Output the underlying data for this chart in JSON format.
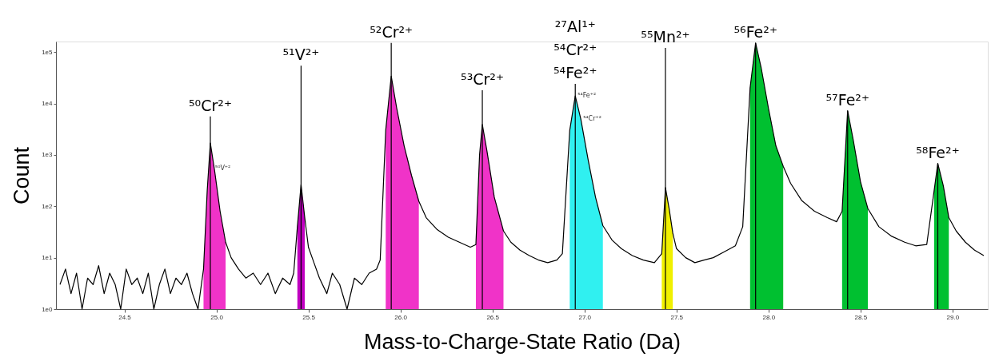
{
  "chart_data": {
    "type": "line",
    "xlabel": "Mass-to-Charge-State Ratio (Da)",
    "ylabel": "Count",
    "log": true,
    "grid": false,
    "marker": "none",
    "line_style": "solid",
    "xlim": [
      24.15,
      29.17
    ],
    "ylim": [
      1,
      160000
    ],
    "xticks": [
      24.5,
      {
        "value": 25,
        "label": "25.0"
      },
      25.5,
      {
        "value": 26,
        "label": "26.0"
      },
      26.5,
      {
        "value": 27,
        "label": "27.0"
      },
      27.5,
      {
        "value": 28,
        "label": "28.0"
      },
      28.5,
      {
        "value": 29,
        "label": "29.0"
      }
    ],
    "yticks": [
      {
        "value": 1,
        "label": "1e0"
      },
      {
        "value": 10,
        "label": "1e1"
      },
      {
        "value": 100,
        "label": "1e2"
      },
      {
        "value": 1000,
        "label": "1e3"
      },
      {
        "value": 10000,
        "label": "1e4"
      },
      {
        "value": 100000,
        "label": "1e5"
      }
    ],
    "series": [
      {
        "type": "area",
        "color": "#f033c8",
        "x": [
          24.93,
          24.95,
          24.967,
          24.99,
          25.02,
          25.05
        ],
        "values": [
          6,
          200,
          1700,
          500,
          80,
          20
        ]
      },
      {
        "type": "area",
        "color": "#c000c0",
        "x": [
          25.44,
          25.46,
          25.48
        ],
        "values": [
          40,
          265,
          60
        ]
      },
      {
        "type": "area",
        "color": "#f033c8",
        "x": [
          25.92,
          25.95,
          25.98,
          26.02,
          26.06,
          26.1
        ],
        "values": [
          3000,
          34000,
          8000,
          1500,
          400,
          125
        ]
      },
      {
        "type": "area",
        "color": "#f033c8",
        "x": [
          26.41,
          26.43,
          26.445,
          26.47,
          26.51,
          26.56
        ],
        "values": [
          18,
          1000,
          3900,
          1200,
          150,
          33
        ]
      },
      {
        "type": "area",
        "color": "#30f0f0",
        "x": [
          26.92,
          26.95,
          26.98,
          27.02,
          27.06,
          27.1
        ],
        "values": [
          3000,
          14000,
          5000,
          800,
          150,
          42
        ]
      },
      {
        "type": "area",
        "color": "#f0f000",
        "x": [
          27.42,
          27.44,
          27.46,
          27.48
        ],
        "values": [
          12,
          230,
          90,
          30
        ]
      },
      {
        "type": "area",
        "color": "#00c030",
        "x": [
          27.9,
          27.93,
          27.96,
          28.0,
          28.04,
          28.08
        ],
        "values": [
          20000,
          150000,
          50000,
          8000,
          1500,
          600
        ]
      },
      {
        "type": "area",
        "color": "#00c030",
        "x": [
          28.4,
          28.43,
          28.46,
          28.5,
          28.54
        ],
        "values": [
          80,
          7200,
          2000,
          300,
          90
        ]
      },
      {
        "type": "area",
        "color": "#00c030",
        "x": [
          28.9,
          28.92,
          28.95,
          28.98
        ],
        "values": [
          200,
          680,
          250,
          60
        ]
      },
      {
        "type": "bar",
        "color": "#000000",
        "x": [
          24.967,
          25.46,
          25.95,
          26.445,
          26.95,
          27.44,
          27.93,
          28.43,
          28.92
        ],
        "values": [
          5600,
          54000,
          150000,
          18000,
          24000,
          120000,
          150000,
          7200,
          680
        ],
        "value_labels": [
          "⁵⁰Cr²⁺",
          "⁵¹V²⁺",
          "⁵²Cr²⁺",
          "⁵³Cr²⁺",
          "²⁷Al¹⁺\n⁵⁴Cr²⁺\n⁵⁴Fe²⁺",
          "⁵⁵Mn²⁺",
          "⁵⁶Fe²⁺",
          "⁵⁷Fe²⁺",
          "⁵⁸Fe²⁺"
        ]
      },
      {
        "color": "#000000",
        "x": [
          24.15,
          24.18,
          24.21,
          24.24,
          24.27,
          24.3,
          24.33,
          24.36,
          24.39,
          24.42,
          24.45,
          24.48,
          24.51,
          24.54,
          24.57,
          24.6,
          24.63,
          24.66,
          24.69,
          24.72,
          24.75,
          24.78,
          24.81,
          24.84,
          24.87,
          24.9,
          24.93,
          24.95,
          24.967,
          24.99,
          25.02,
          25.05,
          25.08,
          25.12,
          25.16,
          25.2,
          25.24,
          25.28,
          25.32,
          25.36,
          25.4,
          25.42,
          25.44,
          25.46,
          25.48,
          25.5,
          25.53,
          25.56,
          25.6,
          25.63,
          25.67,
          25.71,
          25.75,
          25.79,
          25.83,
          25.87,
          25.89,
          25.92,
          25.95,
          25.98,
          26.02,
          26.06,
          26.1,
          26.14,
          26.2,
          26.26,
          26.32,
          26.38,
          26.41,
          26.43,
          26.445,
          26.47,
          26.51,
          26.56,
          26.6,
          26.65,
          26.7,
          26.75,
          26.8,
          26.85,
          26.88,
          26.92,
          26.95,
          26.98,
          27.02,
          27.06,
          27.1,
          27.15,
          27.2,
          27.26,
          27.32,
          27.38,
          27.42,
          27.44,
          27.46,
          27.48,
          27.5,
          27.55,
          27.6,
          27.65,
          27.7,
          27.76,
          27.82,
          27.86,
          27.9,
          27.93,
          27.96,
          28.0,
          28.04,
          28.08,
          28.12,
          28.18,
          28.25,
          28.32,
          28.37,
          28.4,
          28.43,
          28.46,
          28.5,
          28.54,
          28.6,
          28.67,
          28.74,
          28.8,
          28.86,
          28.9,
          28.92,
          28.95,
          28.98,
          29.02,
          29.07,
          29.12,
          29.17
        ],
        "values": [
          3,
          6,
          2,
          5,
          1,
          4,
          3,
          7,
          2,
          5,
          3,
          1,
          6,
          3,
          4,
          2,
          5,
          1,
          3,
          6,
          2,
          4,
          3,
          5,
          2,
          1,
          6,
          200,
          1700,
          500,
          80,
          20,
          10,
          6,
          4,
          5,
          3,
          5,
          2,
          4,
          3,
          5,
          40,
          265,
          60,
          16,
          8,
          4,
          2,
          5,
          3,
          1,
          4,
          3,
          5,
          6,
          9,
          3000,
          34000,
          8000,
          1500,
          400,
          125,
          60,
          35,
          25,
          20,
          16,
          18,
          1000,
          3900,
          1200,
          150,
          33,
          20,
          14,
          11,
          9,
          8,
          9,
          12,
          3000,
          14000,
          5000,
          800,
          150,
          42,
          22,
          15,
          11,
          9,
          8,
          12,
          230,
          90,
          30,
          15,
          10,
          8,
          9,
          10,
          13,
          17,
          40,
          20000,
          150000,
          50000,
          8000,
          1500,
          600,
          280,
          130,
          80,
          60,
          50,
          80,
          7200,
          2000,
          300,
          90,
          40,
          26,
          20,
          17,
          18,
          200,
          680,
          250,
          60,
          33,
          20,
          14,
          11
        ]
      }
    ],
    "annotations": [
      {
        "text": "⁵⁰V⁺²",
        "x": 24.98,
        "y": 540
      },
      {
        "text": "⁵⁴Fe⁺²",
        "x": 26.95,
        "y": 14000
      },
      {
        "text": "⁵⁴Cr⁺²",
        "x": 26.98,
        "y": 5000
      }
    ]
  }
}
